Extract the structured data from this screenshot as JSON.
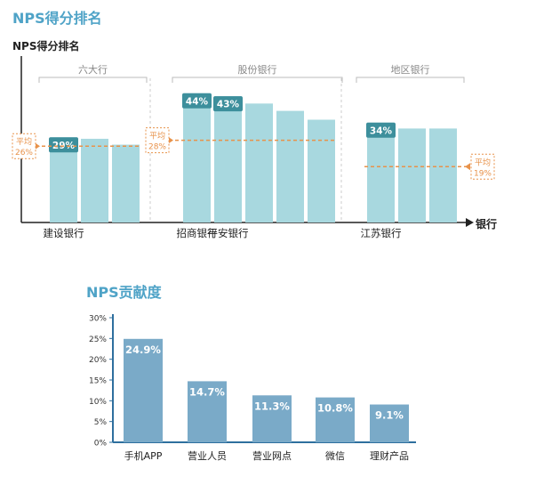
{
  "colors": {
    "title": "#4fa3c7",
    "bar_light": "#a8d8df",
    "bar_label_bg": "#3d8f9c",
    "avg_line": "#e8924a",
    "bar_blue": "#7aaac8",
    "axis_dark": "#222222",
    "axis_blue": "#2e6f9e",
    "group_bracket": "#bbbbbb"
  },
  "chart_data": [
    {
      "type": "bar",
      "title": "NPS得分排名",
      "ylabel": "NPS得分排名",
      "xlabel": "银行",
      "groups": [
        {
          "name": "六大行",
          "average": 26,
          "average_label": [
            "平均",
            "26%"
          ],
          "bars": [
            {
              "value": 29,
              "label": "29%",
              "category": "建设银行"
            },
            {
              "value": 28.5,
              "label": "",
              "category": ""
            },
            {
              "value": 26.5,
              "label": "",
              "category": ""
            }
          ]
        },
        {
          "name": "股份银行",
          "average": 28,
          "average_label": [
            "平均",
            "28%"
          ],
          "bars": [
            {
              "value": 44,
              "label": "44%",
              "category": "招商银行"
            },
            {
              "value": 43,
              "label": "43%",
              "category": "平安银行"
            },
            {
              "value": 40.5,
              "label": "",
              "category": ""
            },
            {
              "value": 38,
              "label": "",
              "category": ""
            },
            {
              "value": 35,
              "label": "",
              "category": ""
            }
          ]
        },
        {
          "name": "地区银行",
          "average": 19,
          "average_label": [
            "平均",
            "19%"
          ],
          "bars": [
            {
              "value": 34,
              "label": "34%",
              "category": "江苏银行"
            },
            {
              "value": 32,
              "label": "",
              "category": ""
            },
            {
              "value": 32,
              "label": "",
              "category": ""
            }
          ]
        }
      ]
    },
    {
      "type": "bar",
      "title": "NPS贡献度",
      "categories": [
        "手机APP",
        "营业人员",
        "营业网点",
        "微信",
        "理财产品"
      ],
      "values": [
        24.9,
        14.7,
        11.3,
        10.8,
        9.1
      ],
      "value_labels": [
        "24.9%",
        "14.7%",
        "11.3%",
        "10.8%",
        "9.1%"
      ],
      "ylim": [
        0,
        30
      ],
      "yticks": [
        0,
        5,
        10,
        15,
        20,
        25,
        30
      ],
      "ytick_labels": [
        "0%",
        "5%",
        "10%",
        "15%",
        "20%",
        "25%",
        "30%"
      ]
    }
  ]
}
